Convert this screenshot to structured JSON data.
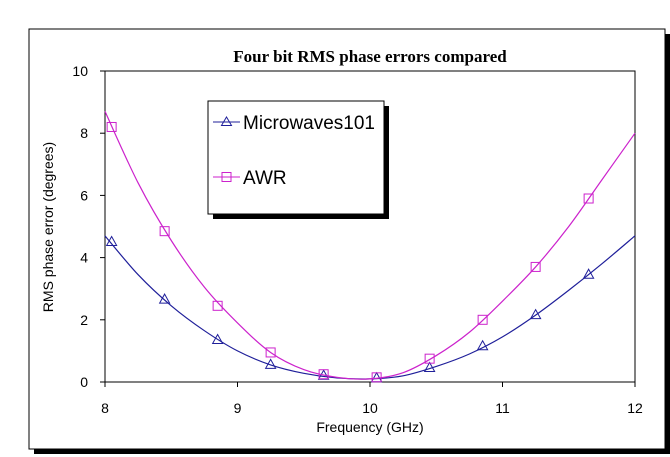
{
  "chart_data": {
    "type": "line",
    "title": "Four bit RMS phase errors compared",
    "xlabel": "Frequency (GHz)",
    "ylabel": "RMS phase error (degrees)",
    "xlim": [
      8,
      12
    ],
    "ylim": [
      0,
      10
    ],
    "x_ticks": [
      "8",
      "9",
      "10",
      "11",
      "12"
    ],
    "y_ticks": [
      "0",
      "2",
      "4",
      "6",
      "8",
      "10"
    ],
    "grid": false,
    "legend": "upper-left inside plot",
    "series": [
      {
        "name": "Microwaves101",
        "color": "#1f1f9a",
        "marker": "triangle",
        "marker_x": [
          8.05,
          8.45,
          8.85,
          9.25,
          9.65,
          10.05,
          10.45,
          10.85,
          11.25,
          11.65
        ],
        "marker_y": [
          4.5,
          2.65,
          1.35,
          0.55,
          0.2,
          0.12,
          0.45,
          1.15,
          2.15,
          3.45
        ],
        "curve_x": [
          8.0,
          8.25,
          8.5,
          8.75,
          9.0,
          9.25,
          9.5,
          9.75,
          10.0,
          10.25,
          10.5,
          10.75,
          11.0,
          11.25,
          11.5,
          11.75,
          12.0
        ],
        "curve_y": [
          4.7,
          3.45,
          2.45,
          1.65,
          1.0,
          0.55,
          0.28,
          0.13,
          0.1,
          0.2,
          0.5,
          0.9,
          1.45,
          2.15,
          2.95,
          3.8,
          4.7
        ]
      },
      {
        "name": "AWR",
        "color": "#cc22cc",
        "marker": "square",
        "marker_x": [
          8.05,
          8.45,
          8.85,
          9.25,
          9.65,
          10.05,
          10.45,
          10.85,
          11.25,
          11.65
        ],
        "marker_y": [
          8.2,
          4.85,
          2.45,
          0.95,
          0.25,
          0.15,
          0.75,
          2.0,
          3.7,
          5.9
        ],
        "curve_x": [
          8.0,
          8.25,
          8.5,
          8.75,
          9.0,
          9.25,
          9.5,
          9.75,
          10.0,
          10.25,
          10.5,
          10.75,
          11.0,
          11.25,
          11.5,
          11.75,
          12.0
        ],
        "curve_y": [
          8.7,
          6.4,
          4.55,
          3.05,
          1.9,
          0.95,
          0.4,
          0.15,
          0.1,
          0.3,
          0.85,
          1.6,
          2.6,
          3.7,
          5.0,
          6.5,
          8.0
        ]
      }
    ]
  }
}
